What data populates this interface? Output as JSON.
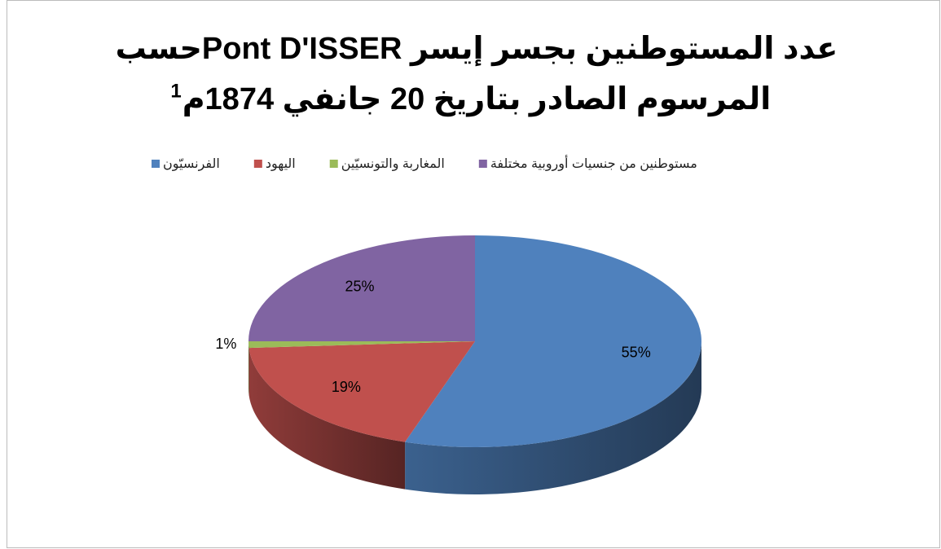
{
  "chart_data": {
    "type": "pie3d",
    "title": [
      "عدد المستوطنين بجسر إيسر Pont D'ISSERحسب",
      "المرسوم الصادر بتاريخ 20 جانفي 1874م"
    ],
    "title_note": "1",
    "categories": [
      "الفرنسيّون",
      "اليهود",
      "المغاربة والتونسيّين",
      "مستوطنين من جنسيات أوروبية مختلفة"
    ],
    "values": [
      55,
      19,
      1,
      25
    ],
    "value_labels": [
      "55%",
      "19%",
      "1%",
      "25%"
    ],
    "colors": [
      "#4f81bd",
      "#c0504d",
      "#9bbb59",
      "#8064a2"
    ],
    "legend": "top"
  }
}
